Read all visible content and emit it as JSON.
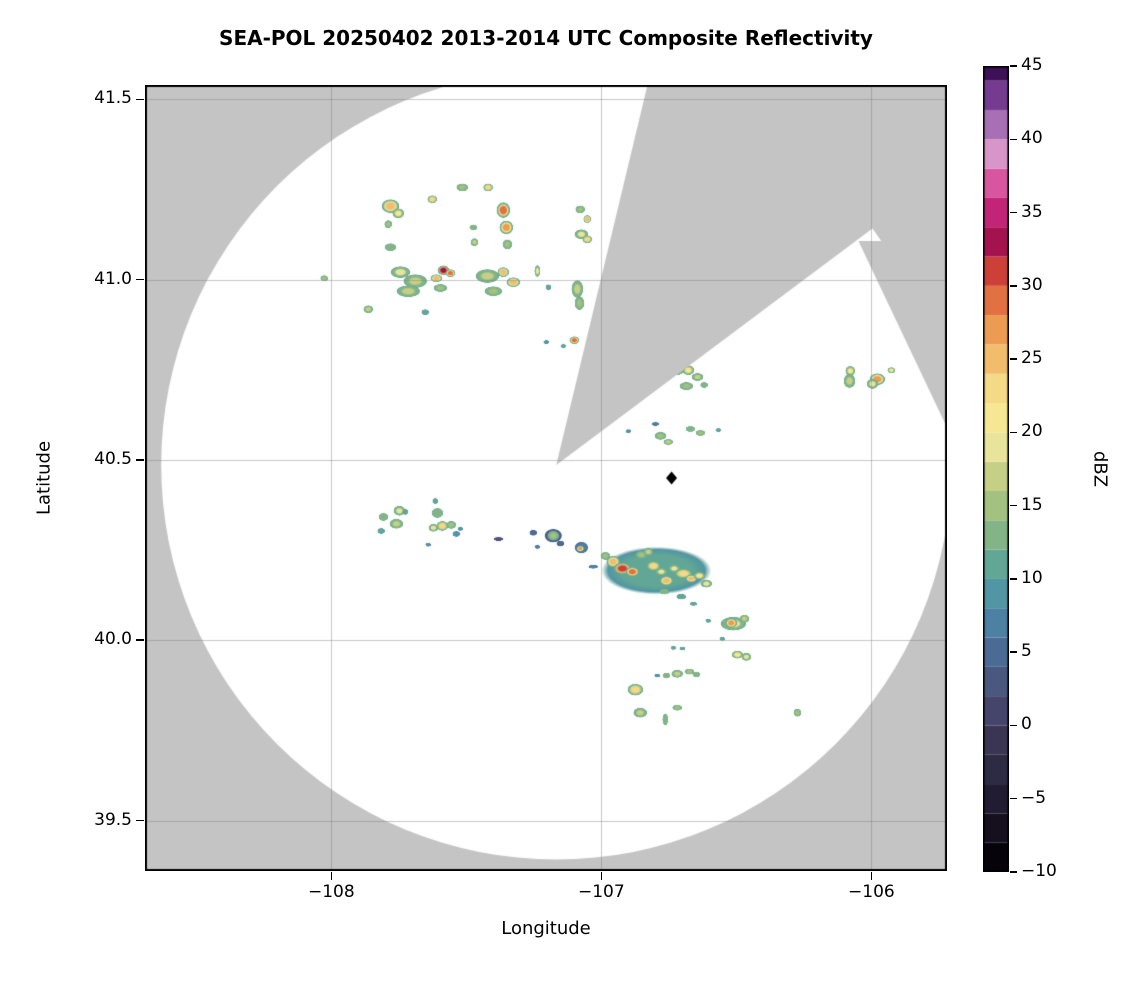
{
  "title": "SEA-POL 20250402 2013-2014 UTC Composite Reflectivity",
  "axes": {
    "x_label": "Longitude",
    "y_label": "Latitude",
    "x_ticks": [
      {
        "label": "−108",
        "value": -108
      },
      {
        "label": "−107",
        "value": -107
      },
      {
        "label": "−106",
        "value": -106
      }
    ],
    "y_ticks": [
      {
        "label": "41.5",
        "value": 41.5
      },
      {
        "label": "41.0",
        "value": 41.0
      },
      {
        "label": "40.5",
        "value": 40.5
      },
      {
        "label": "40.0",
        "value": 40.0
      },
      {
        "label": "39.5",
        "value": 39.5
      }
    ]
  },
  "colorbar": {
    "label": "dBZ",
    "vmin": -10,
    "vmax": 45,
    "tick_values": [
      45,
      40,
      35,
      30,
      25,
      20,
      15,
      10,
      5,
      0,
      -5,
      -10
    ],
    "tick_labels": [
      "45",
      "40",
      "35",
      "30",
      "25",
      "20",
      "15",
      "10",
      "5",
      "0",
      "−5",
      "−10"
    ]
  },
  "colors": {
    "outside_scan": "#c4c4c4",
    "inside_scan": "#ffffff",
    "grid": "rgba(130,130,130,0.45)",
    "frame": "#000000",
    "marker": "#000000"
  },
  "chart_data": {
    "type": "heatmap",
    "title": "SEA-POL 20250402 2013-2014 UTC Composite Reflectivity",
    "xlabel": "Longitude",
    "ylabel": "Latitude",
    "xlim": [
      -108.69,
      -105.72
    ],
    "ylim": [
      39.36,
      41.54
    ],
    "grid": true,
    "legend_position": "right-colorbar",
    "colorbar": {
      "label": "dBZ",
      "vmin": -10,
      "vmax": 45,
      "band_step": 2,
      "band_colors": [
        "#06040a",
        "#150f1e",
        "#211c31",
        "#2d2a44",
        "#393552",
        "#45446b",
        "#4a577f",
        "#4c6b94",
        "#4d81a4",
        "#5295a4",
        "#62a795",
        "#83b487",
        "#a3c180",
        "#c6cf86",
        "#e9e49c",
        "#f6e792",
        "#f4d987",
        "#f1bd6d",
        "#ec9b52",
        "#e17042",
        "#cc4038",
        "#a5134e",
        "#c22577",
        "#d8569f",
        "#d795c9",
        "#a96fb4",
        "#743b90",
        "#3d1058"
      ]
    },
    "radar": {
      "center_lon": -107.167,
      "center_lat": 40.486,
      "radius_lon_deg": 1.463,
      "radius_lat_deg": 1.094,
      "blocked_sector_az_screen_deg": [
        13.5,
        53.2
      ],
      "edge_block": {
        "apex": [
          -106.048,
          41.107
        ],
        "toward": [
          -105.65,
          40.48
        ]
      }
    },
    "site_marker": {
      "lon": -106.74,
      "lat": 40.45,
      "symbol": "diamond"
    },
    "echoes_format": [
      "lon",
      "lat",
      "rx_px",
      "ry_px",
      "dbz"
    ],
    "echoes": [
      [
        -107.781,
        41.204,
        9,
        7,
        25
      ],
      [
        -107.752,
        41.184,
        6,
        5,
        20
      ],
      [
        -107.626,
        41.223,
        5,
        4,
        22
      ],
      [
        -107.515,
        41.256,
        6,
        4,
        15
      ],
      [
        -107.419,
        41.256,
        5,
        4,
        23
      ],
      [
        -107.363,
        41.193,
        7,
        8,
        28
      ],
      [
        -107.352,
        41.145,
        7,
        7,
        27
      ],
      [
        -107.348,
        41.098,
        5,
        5,
        14
      ],
      [
        -107.789,
        41.154,
        4,
        4,
        15
      ],
      [
        -107.781,
        41.09,
        6,
        4,
        13
      ],
      [
        -107.474,
        41.145,
        4,
        3,
        12
      ],
      [
        -107.47,
        41.104,
        4,
        4,
        16
      ],
      [
        -107.078,
        41.195,
        5,
        4,
        14
      ],
      [
        -107.052,
        41.168,
        4,
        4,
        24
      ],
      [
        -107.074,
        41.126,
        7,
        5,
        18
      ],
      [
        -107.052,
        41.112,
        5,
        4,
        22
      ],
      [
        -108.026,
        41.004,
        4,
        3,
        14
      ],
      [
        -107.744,
        41.021,
        10,
        6,
        18
      ],
      [
        -107.689,
        40.996,
        12,
        7,
        17
      ],
      [
        -107.585,
        41.026,
        6,
        5,
        33
      ],
      [
        -107.559,
        41.018,
        5,
        4,
        29
      ],
      [
        -107.611,
        41.004,
        6,
        4,
        24
      ],
      [
        -107.715,
        40.968,
        12,
        6,
        16
      ],
      [
        -107.596,
        40.977,
        7,
        4,
        14
      ],
      [
        -107.422,
        41.01,
        12,
        7,
        17
      ],
      [
        -107.363,
        41.021,
        6,
        5,
        24
      ],
      [
        -107.326,
        40.993,
        7,
        5,
        25
      ],
      [
        -107.4,
        40.968,
        9,
        5,
        15
      ],
      [
        -107.237,
        41.024,
        3,
        6,
        18
      ],
      [
        -107.196,
        40.979,
        3,
        3,
        10
      ],
      [
        -107.089,
        40.974,
        6,
        9,
        16
      ],
      [
        -107.081,
        40.935,
        5,
        7,
        15
      ],
      [
        -107.863,
        40.918,
        5,
        4,
        17
      ],
      [
        -107.652,
        40.91,
        4,
        3,
        11
      ],
      [
        -107.1,
        40.832,
        5,
        4,
        29
      ],
      [
        -107.204,
        40.827,
        3,
        2,
        8
      ],
      [
        -107.141,
        40.816,
        3,
        2,
        11
      ],
      [
        -106.715,
        40.747,
        5,
        4,
        12
      ],
      [
        -106.678,
        40.749,
        6,
        5,
        21
      ],
      [
        -106.644,
        40.73,
        6,
        4,
        16
      ],
      [
        -106.685,
        40.705,
        7,
        4,
        14
      ],
      [
        -106.619,
        40.708,
        4,
        3,
        12
      ],
      [
        -106.8,
        40.6,
        4,
        2,
        7
      ],
      [
        -106.67,
        40.586,
        5,
        3,
        12
      ],
      [
        -106.633,
        40.575,
        5,
        3,
        14
      ],
      [
        -106.567,
        40.583,
        3,
        2,
        10
      ],
      [
        -106.9,
        40.58,
        3,
        2,
        8
      ],
      [
        -106.781,
        40.567,
        6,
        4,
        14
      ],
      [
        -106.752,
        40.55,
        5,
        3,
        16
      ],
      [
        -106.078,
        40.747,
        5,
        5,
        20
      ],
      [
        -106.081,
        40.719,
        6,
        7,
        16
      ],
      [
        -105.978,
        40.724,
        8,
        6,
        27
      ],
      [
        -105.996,
        40.711,
        6,
        5,
        18
      ],
      [
        -105.926,
        40.749,
        4,
        3,
        21
      ],
      [
        -107.807,
        40.342,
        5,
        4,
        12
      ],
      [
        -107.748,
        40.359,
        6,
        5,
        18
      ],
      [
        -107.759,
        40.323,
        7,
        5,
        17
      ],
      [
        -107.815,
        40.303,
        4,
        3,
        10
      ],
      [
        -107.726,
        40.356,
        3,
        3,
        11
      ],
      [
        -107.615,
        40.386,
        3,
        3,
        10
      ],
      [
        -107.607,
        40.353,
        6,
        5,
        13
      ],
      [
        -107.589,
        40.317,
        6,
        5,
        22
      ],
      [
        -107.622,
        40.312,
        5,
        4,
        18
      ],
      [
        -107.556,
        40.32,
        5,
        4,
        15
      ],
      [
        -107.537,
        40.295,
        4,
        3,
        8
      ],
      [
        -107.522,
        40.309,
        3,
        2,
        8
      ],
      [
        -107.641,
        40.265,
        3,
        2,
        8
      ],
      [
        -107.381,
        40.281,
        5,
        2,
        3
      ],
      [
        -107.252,
        40.298,
        4,
        3,
        4
      ],
      [
        -107.237,
        40.259,
        3,
        2,
        7
      ],
      [
        -107.178,
        40.29,
        9,
        7,
        5
      ],
      [
        -107.178,
        40.29,
        6,
        5,
        15
      ],
      [
        -107.152,
        40.268,
        4,
        3,
        4
      ],
      [
        -107.074,
        40.257,
        7,
        6,
        6
      ],
      [
        -107.078,
        40.254,
        4,
        3,
        26
      ],
      [
        -107.03,
        40.204,
        5,
        2,
        6
      ],
      [
        -106.796,
        40.193,
        55,
        24,
        11
      ],
      [
        -106.956,
        40.218,
        7,
        6,
        24
      ],
      [
        -106.922,
        40.199,
        9,
        6,
        31
      ],
      [
        -106.885,
        40.19,
        7,
        5,
        28
      ],
      [
        -106.985,
        40.234,
        5,
        4,
        14
      ],
      [
        -106.852,
        40.237,
        6,
        4,
        15
      ],
      [
        -106.826,
        40.245,
        5,
        4,
        16
      ],
      [
        -106.807,
        40.206,
        7,
        5,
        23
      ],
      [
        -106.778,
        40.19,
        6,
        4,
        19
      ],
      [
        -106.759,
        40.165,
        7,
        5,
        25
      ],
      [
        -106.73,
        40.199,
        6,
        4,
        18
      ],
      [
        -106.696,
        40.185,
        9,
        5,
        22
      ],
      [
        -106.667,
        40.171,
        6,
        4,
        24
      ],
      [
        -106.637,
        40.179,
        6,
        4,
        21
      ],
      [
        -106.611,
        40.157,
        6,
        4,
        18
      ],
      [
        -106.767,
        40.135,
        5,
        3,
        12
      ],
      [
        -106.704,
        40.121,
        5,
        3,
        10
      ],
      [
        -106.659,
        40.101,
        4,
        2,
        10
      ],
      [
        -106.604,
        40.054,
        3,
        2,
        11
      ],
      [
        -106.511,
        40.046,
        13,
        7,
        18
      ],
      [
        -106.519,
        40.048,
        6,
        5,
        26
      ],
      [
        -106.47,
        40.06,
        5,
        4,
        16
      ],
      [
        -106.552,
        40.004,
        3,
        2,
        10
      ],
      [
        -106.733,
        39.979,
        3,
        2,
        11
      ],
      [
        -106.7,
        39.977,
        3,
        2,
        11
      ],
      [
        -106.496,
        39.96,
        6,
        4,
        21
      ],
      [
        -106.463,
        39.954,
        5,
        4,
        18
      ],
      [
        -106.793,
        39.902,
        3,
        2,
        9
      ],
      [
        -106.759,
        39.902,
        4,
        3,
        12
      ],
      [
        -106.719,
        39.907,
        6,
        4,
        17
      ],
      [
        -106.674,
        39.913,
        5,
        3,
        14
      ],
      [
        -106.648,
        39.905,
        4,
        3,
        12
      ],
      [
        -106.874,
        39.863,
        8,
        6,
        22
      ],
      [
        -106.856,
        39.799,
        7,
        5,
        17
      ],
      [
        -106.719,
        39.813,
        5,
        3,
        15
      ],
      [
        -106.763,
        39.78,
        3,
        6,
        13
      ],
      [
        -106.274,
        39.799,
        4,
        4,
        15
      ]
    ]
  }
}
